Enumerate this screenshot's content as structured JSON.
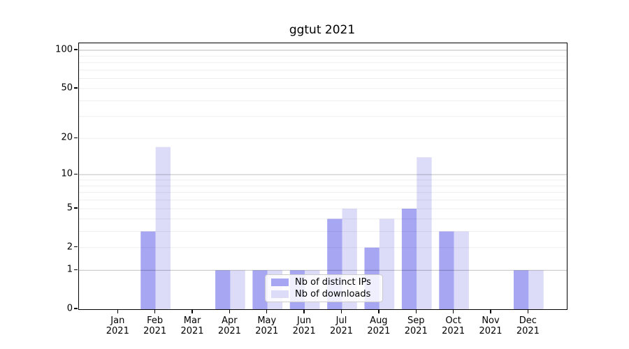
{
  "chart_data": {
    "type": "bar",
    "title": "ggtut 2021",
    "categories": [
      "Jan 2021",
      "Feb 2021",
      "Mar 2021",
      "Apr 2021",
      "May 2021",
      "Jun 2021",
      "Jul 2021",
      "Aug 2021",
      "Sep 2021",
      "Oct 2021",
      "Nov 2021",
      "Dec 2021"
    ],
    "x_tick_labels": [
      [
        "Jan",
        "2021"
      ],
      [
        "Feb",
        "2021"
      ],
      [
        "Mar",
        "2021"
      ],
      [
        "Apr",
        "2021"
      ],
      [
        "May",
        "2021"
      ],
      [
        "Jun",
        "2021"
      ],
      [
        "Jul",
        "2021"
      ],
      [
        "Aug",
        "2021"
      ],
      [
        "Sep",
        "2021"
      ],
      [
        "Oct",
        "2021"
      ],
      [
        "Nov",
        "2021"
      ],
      [
        "Dec",
        "2021"
      ]
    ],
    "series": [
      {
        "name": "Nb of distinct IPs",
        "color": "#a6a6f3",
        "values": [
          0,
          3,
          0,
          1,
          1,
          1,
          4,
          2,
          5,
          3,
          0,
          1
        ]
      },
      {
        "name": "Nb of downloads",
        "color": "#dcdcf9",
        "values": [
          0,
          17,
          0,
          1,
          1,
          1,
          5,
          4,
          14,
          3,
          0,
          1
        ]
      }
    ],
    "y_scale": "log1p",
    "ylim": [
      0,
      113
    ],
    "y_ticks": [
      0,
      1,
      2,
      5,
      10,
      20,
      50,
      100
    ],
    "y_major_gridlines": [
      1,
      10,
      100
    ],
    "y_minor_gridlines": [
      2,
      3,
      4,
      5,
      6,
      7,
      8,
      9,
      20,
      30,
      40,
      50,
      60,
      70,
      80,
      90
    ],
    "grid": "on",
    "legend_position": "lower center"
  },
  "colors": {
    "major_grid": "rgba(0,0,0,0.22)",
    "minor_grid": "rgba(0,0,0,0.065)",
    "axis": "#000000",
    "legend_border": "#cccccc"
  }
}
